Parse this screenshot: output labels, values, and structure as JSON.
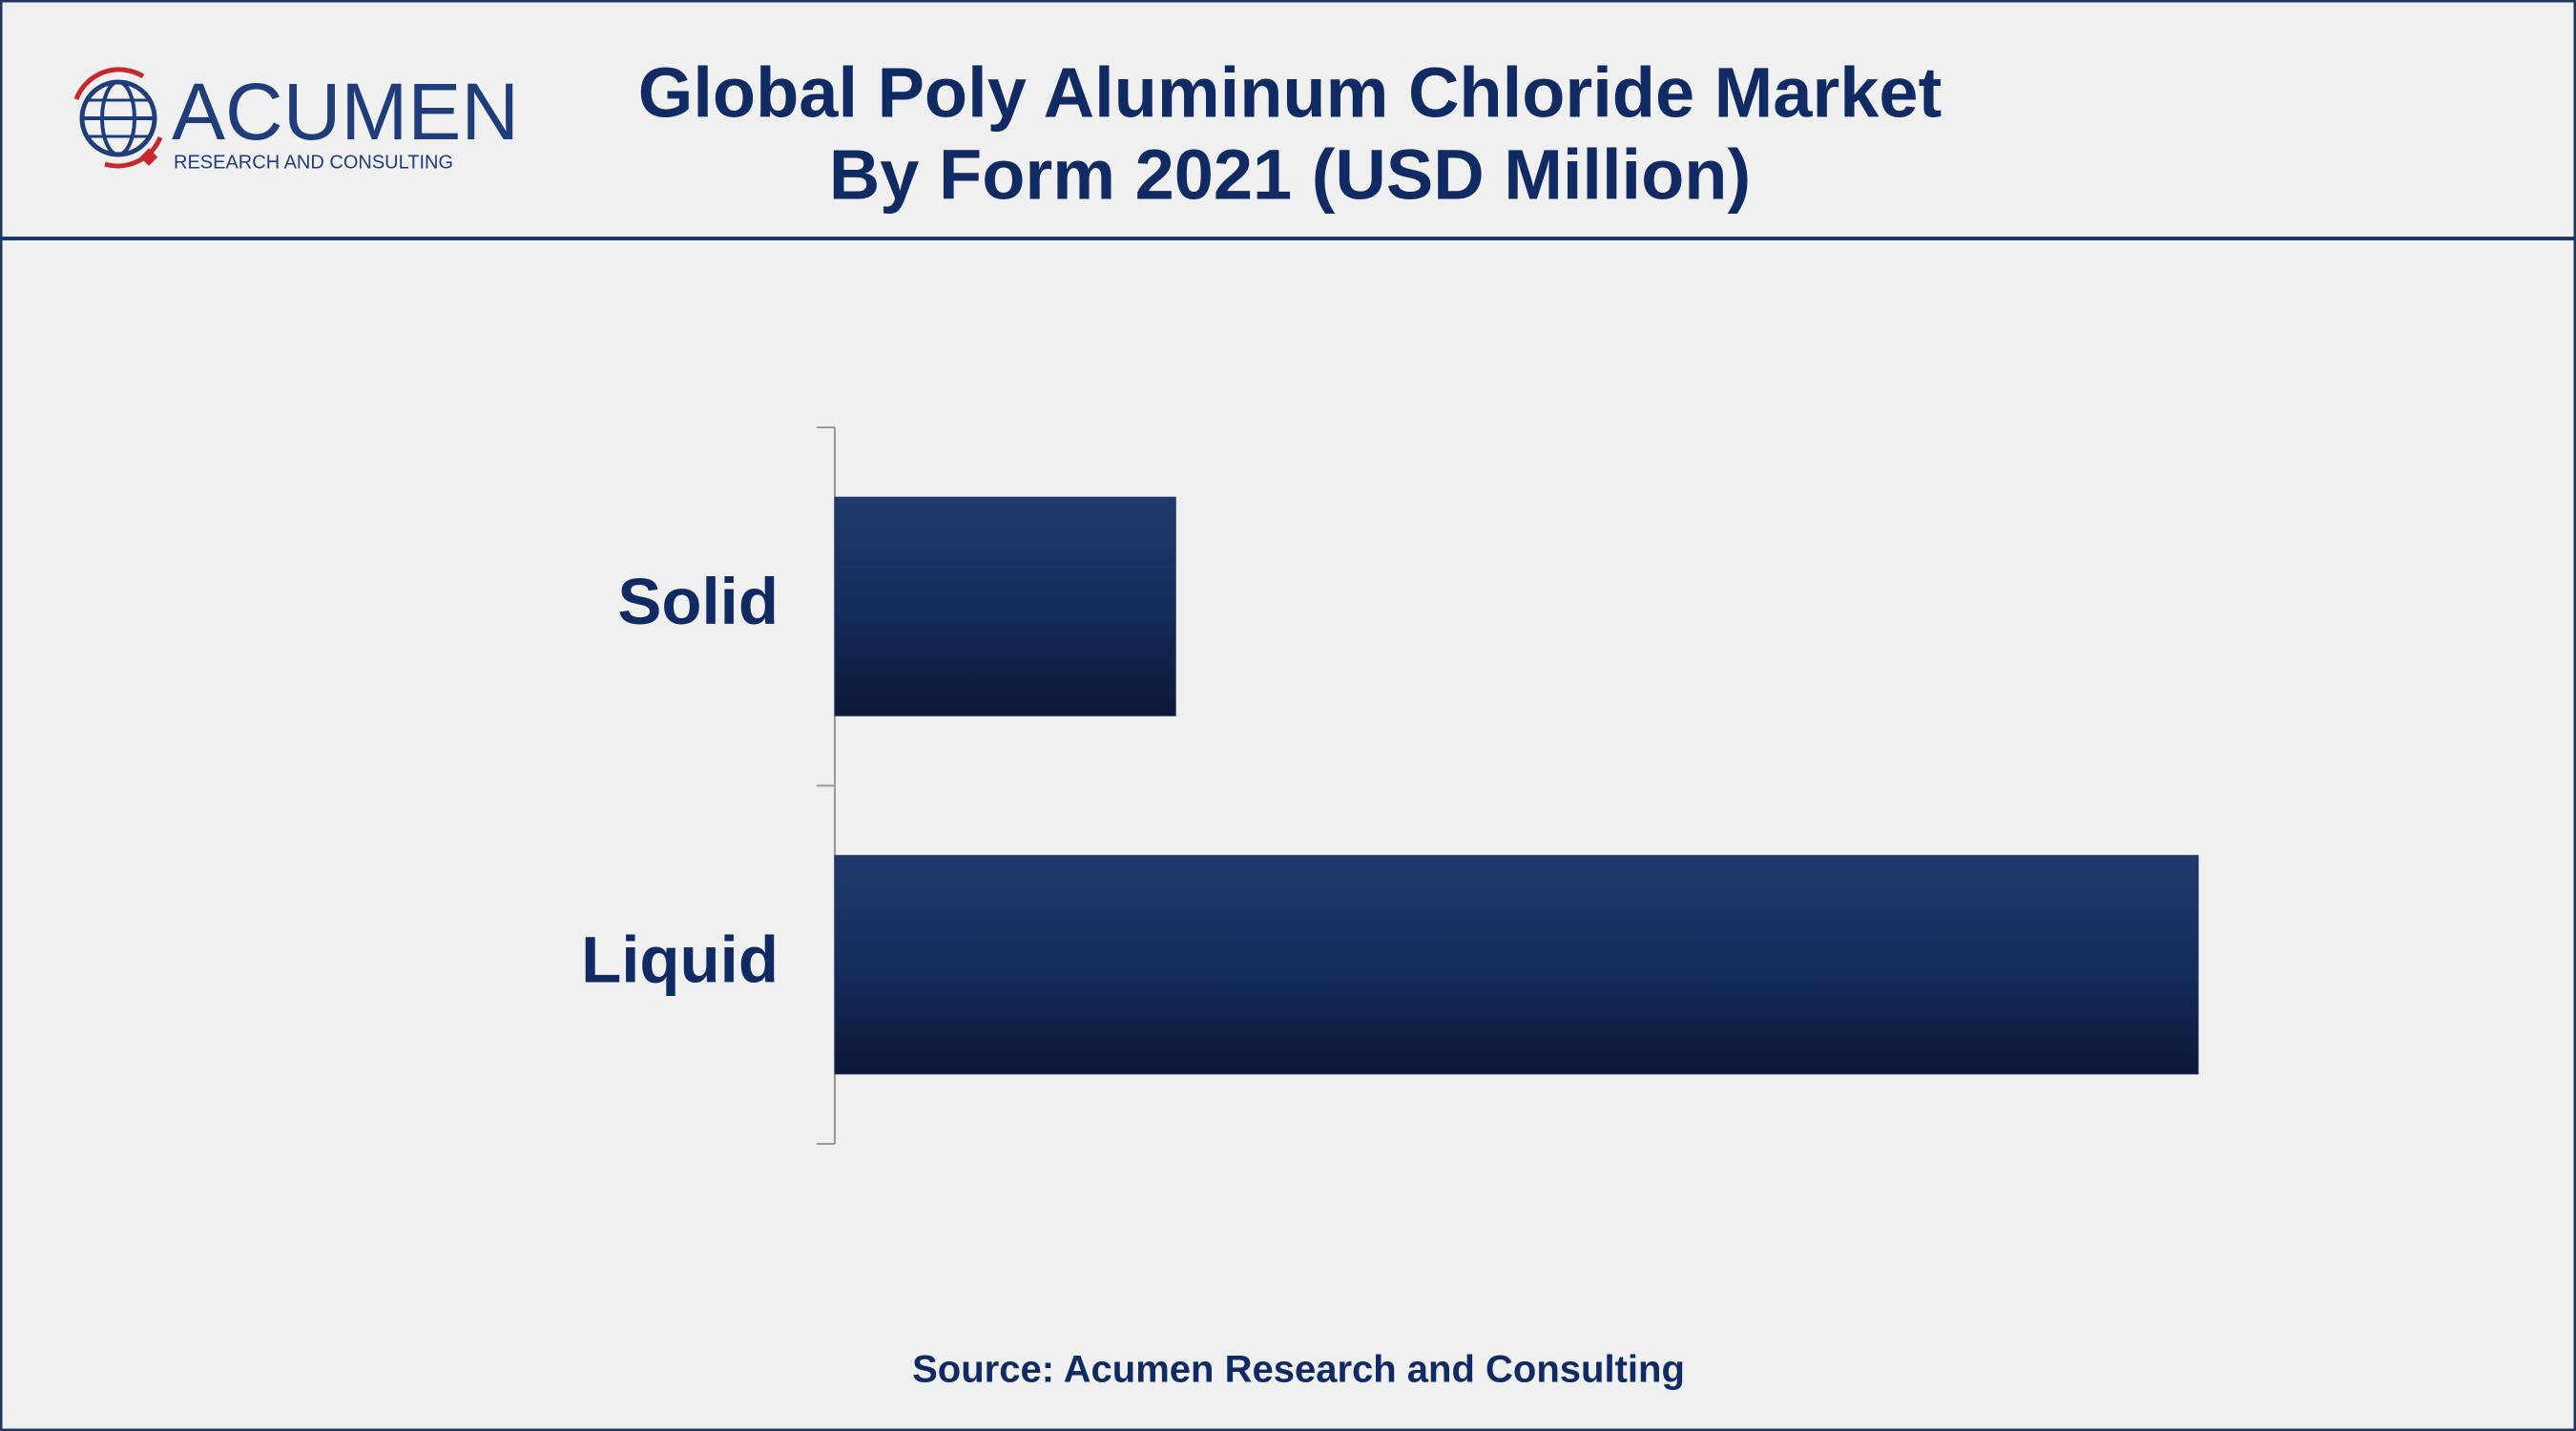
{
  "logo": {
    "name": "ACUMEN",
    "tagline": "RESEARCH AND CONSULTING"
  },
  "chart_data": {
    "type": "bar",
    "orientation": "horizontal",
    "title": "Global Poly Aluminum Chloride Market",
    "subtitle": "By Form 2021 (USD Million)",
    "categories": [
      "Solid",
      "Liquid"
    ],
    "values": [
      250,
      1000
    ],
    "color": "#1a3263",
    "source": "Source: Acumen Research and Consulting"
  }
}
